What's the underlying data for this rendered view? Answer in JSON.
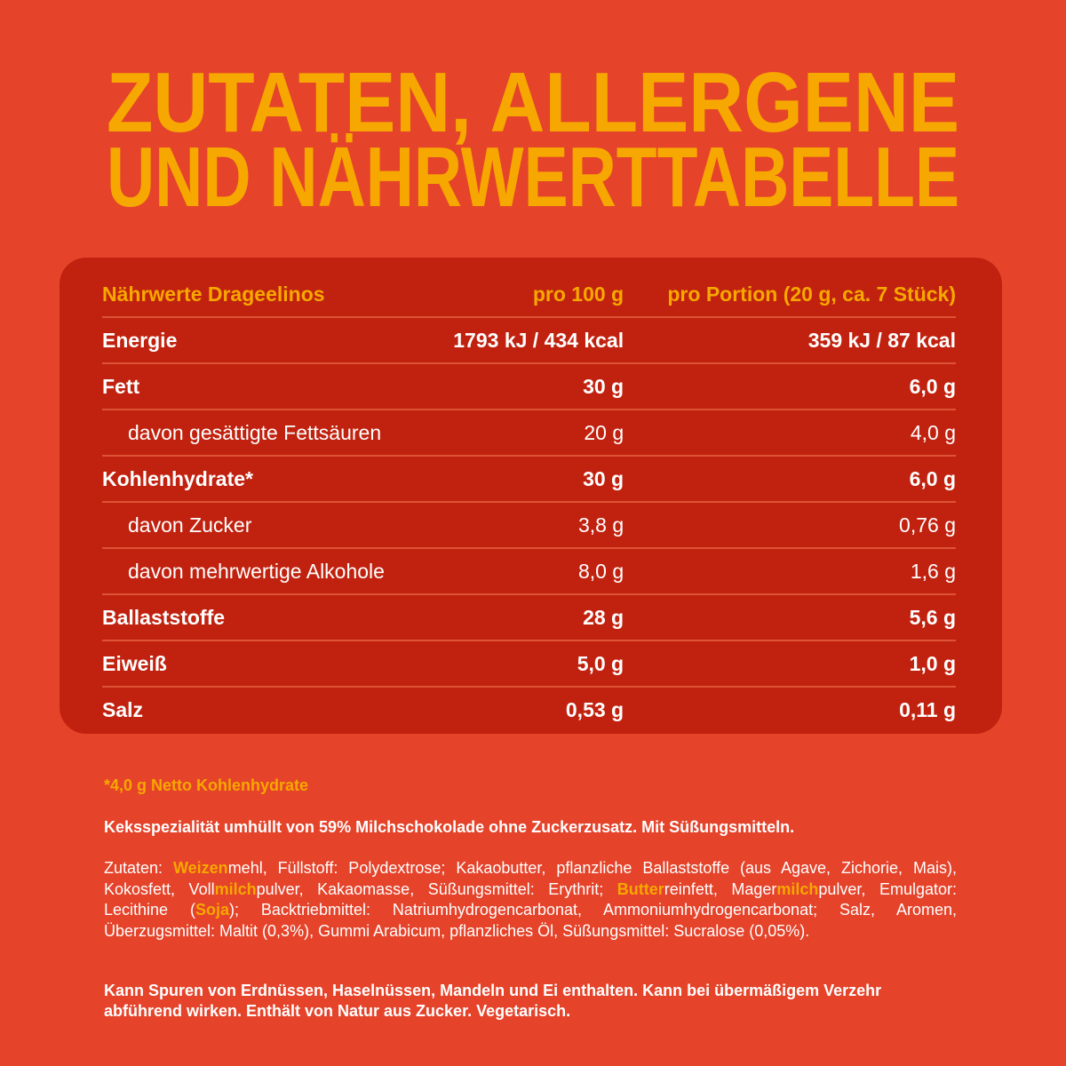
{
  "header": {
    "title_lines": [
      "ZUTATEN, ALLERGENE",
      "UND NÄHRWERTTABELLE"
    ]
  },
  "table": {
    "header": [
      "Nährwerte Drageelinos",
      "pro 100 g",
      "pro Portion (20 g, ca. 7 Stück)"
    ],
    "rows": [
      {
        "label": "Energie",
        "per100": "1793 kJ / 434 kcal",
        "portion": "359 kJ / 87 kcal",
        "sub": false
      },
      {
        "label": "Fett",
        "per100": "30 g",
        "portion": "6,0 g",
        "sub": false
      },
      {
        "label": "davon gesättigte Fettsäuren",
        "per100": "20 g",
        "portion": "4,0 g",
        "sub": true
      },
      {
        "label": "Kohlenhydrate*",
        "per100": "30 g",
        "portion": "6,0 g",
        "sub": false
      },
      {
        "label": "davon Zucker",
        "per100": "3,8 g",
        "portion": "0,76 g",
        "sub": true
      },
      {
        "label": "davon mehrwertige Alkohole",
        "per100": "8,0 g",
        "portion": "1,6 g",
        "sub": true
      },
      {
        "label": "Ballaststoffe",
        "per100": "28 g",
        "portion": "5,6 g",
        "sub": false
      },
      {
        "label": "Eiweiß",
        "per100": "5,0 g",
        "portion": "1,0 g",
        "sub": false
      },
      {
        "label": "Salz",
        "per100": "0,53 g",
        "portion": "0,11 g",
        "sub": false
      }
    ]
  },
  "footnote": "*4,0 g Netto Kohlenhydrate",
  "description": "Keksspezialität umhüllt von 59% Milchschokolade ohne Zuckerzusatz. Mit Süßungsmitteln.",
  "ingredients": [
    {
      "text": "Zutaten: ",
      "allergen": false
    },
    {
      "text": "Weizen",
      "allergen": true
    },
    {
      "text": "mehl, Füllstoff: Polydextrose; Kakaobutter, pflanzliche Ballaststoffe (aus Agave, Zichorie, Mais), Kokosfett, Voll",
      "allergen": false
    },
    {
      "text": "milch",
      "allergen": true
    },
    {
      "text": "pulver, Kakaomasse, Süßungsmittel: Erythrit; ",
      "allergen": false
    },
    {
      "text": "Butter",
      "allergen": true
    },
    {
      "text": "reinfett, Mager",
      "allergen": false
    },
    {
      "text": "milch",
      "allergen": true
    },
    {
      "text": "pulver, Emulgator: Lecithine (",
      "allergen": false
    },
    {
      "text": "Soja",
      "allergen": true
    },
    {
      "text": "); Backtriebmittel: Natriumhydrogencarbonat, Ammoniumhydrogencarbonat; Salz, Aromen, Überzugsmittel: Maltit (0,3%), Gummi Arabicum, pflanzliches Öl, Süßungsmittel: Sucralose (0,05%).",
      "allergen": false
    }
  ],
  "notice": "Kann Spuren von Erdnüssen, Haselnüssen, Mandeln und Ei enthalten. Kann bei übermäßigem Verzehr abführend wirken. Enthält von Natur aus Zucker. Vegetarisch."
}
